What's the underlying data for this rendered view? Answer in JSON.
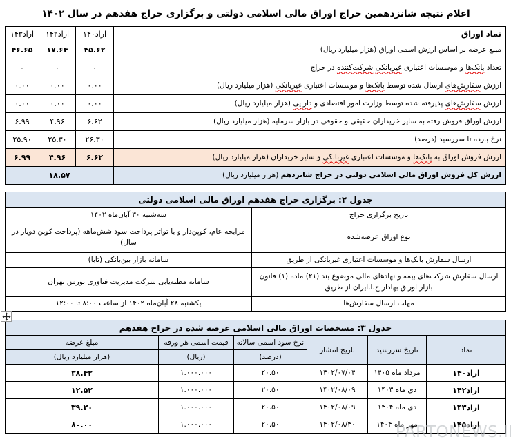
{
  "page": {
    "title": "اعلام نتیجه شانزدهمین حراج اوراق مالی اسلامی دولتی و برگزاری حراج هفدهم در سال ۱۴۰۲"
  },
  "colors": {
    "header_blue": "#dbe5f1",
    "highlight_peach": "#fbe5d6",
    "squiggle_red": "#e00000",
    "watermark_gray": "#b9bdc0"
  },
  "icons": {
    "table-move-handle": "four-way-arrow"
  },
  "watermark": {
    "text": "PARTONEWS.IR"
  },
  "table1": {
    "corner_label": "نماد اوراق",
    "columns": [
      "اراد۱۴۰",
      "اراد۱۴۲",
      "اراد۱۴۳"
    ],
    "rows": [
      {
        "label": [
          {
            "t": "مبلغ عرضه بر اساس ارزش اسمی اوراق (هزار میلیارد ریال)"
          }
        ],
        "values": [
          "۴۵.۶۲",
          "۱۷.۶۴",
          "۴۶.۶۵"
        ],
        "bold": true
      },
      {
        "label": [
          {
            "t": "تعداد "
          },
          {
            "t": "بانک‌ها",
            "sq": true
          },
          {
            "t": " و موسسات اعتباری "
          },
          {
            "t": "غیربانکی",
            "sq": true
          },
          {
            "t": " "
          },
          {
            "t": "شرکت‌کننده",
            "sq": true
          },
          {
            "t": " در حراج"
          }
        ],
        "values": [
          "۰",
          "۰",
          "۰"
        ]
      },
      {
        "label": [
          {
            "t": "ارزش "
          },
          {
            "t": "سفارش‌های",
            "sq": true
          },
          {
            "t": " ارسال شده توسط "
          },
          {
            "t": "بانک‌ها",
            "sq": true
          },
          {
            "t": " و موسسات اعتباری "
          },
          {
            "t": "غیربانکی",
            "sq": true
          },
          {
            "t": " (هزار میلیارد ریال)"
          }
        ],
        "values": [
          "۰.۰۰",
          "۰.۰۰",
          "۰.۰۰"
        ]
      },
      {
        "label": [
          {
            "t": "ارزش "
          },
          {
            "t": "سفارش‌های",
            "sq": true
          },
          {
            "t": " پذیرفته شده توسط وزارت امور اقتصادی و "
          },
          {
            "t": "دارایی",
            "sq": true
          },
          {
            "t": " (هزار میلیارد ریال)"
          }
        ],
        "values": [
          "۰.۰۰",
          "۰.۰۰",
          "۰.۰۰"
        ]
      },
      {
        "label": [
          {
            "t": "ارزش اوراق فروش رفته به سایر خریداران حقیقی و حقوقی در بازار سرمایه (هزار میلیارد ریال)"
          }
        ],
        "values": [
          "۶.۶۲",
          "۴.۹۶",
          "۶.۹۹"
        ]
      },
      {
        "label": [
          {
            "t": "نرخ بازده تا سررسید (درصد)"
          }
        ],
        "values": [
          "۲۶.۳۰",
          "۲۵.۳۰",
          "۲۵.۹۰"
        ]
      },
      {
        "label": [
          {
            "t": "ارزش فروش اوراق به "
          },
          {
            "t": "بانک‌ها",
            "sq": true
          },
          {
            "t": " و موسسات اعتباری "
          },
          {
            "t": "غیربانکی",
            "sq": true
          },
          {
            "t": " و سایر خریداران (هزار میلیارد ریال)"
          }
        ],
        "values": [
          "۶.۶۲",
          "۴.۹۶",
          "۶.۹۹"
        ],
        "bold": true,
        "bg": "peach"
      }
    ],
    "total_row": {
      "label_bold": "ارزش کل فروش اوراق مالی اسلامی دولتی در حراج شانزدهم",
      "label_unit": " (هزار میلیارد ریال)",
      "value": "۱۸.۵۷"
    }
  },
  "table2": {
    "title": "جدول ۲: برگزاری حراج هفدهم اوراق مالی اسلامی دولتی",
    "rows": [
      {
        "label": "تاریخ برگزاری حراج",
        "value": "سه‌شنبه ۳۰ آبان‌ماه ۱۴۰۲"
      },
      {
        "label": "نوع اوراق عرضه‌شده",
        "value": "مرابحه عام، کوپن‌دار و با تواتر پرداخت سود شش‌ماهه (پرداخت کوپن دوبار در سال)"
      },
      {
        "label": "ارسال سفارش بانک‌ها و موسسات اعتباری غیربانکی از طریق",
        "value": "سامانه بازار بین‌بانکی (تابا)"
      },
      {
        "label": "ارسال سفارش شرکت‌های بیمه و نهادهای مالی موضوع بند (۲۱) ماده (۱) قانون بازار اوراق بهادار ج.ا.ایران از طریق",
        "value": "سامانه مظنه‌یابی شرکت مدیریت فناوری بورس تهران"
      },
      {
        "label": "مهلت ارسال سفارش‌ها",
        "value": "یکشنبه ۲۸ آبان‌ماه ۱۴۰۲ از ساعت ۸:۰۰ تا ۱۲:۰۰"
      }
    ]
  },
  "table3": {
    "title": "جدول ۳: مشخصات اوراق مالی اسلامی عرضه شده در حراج هفدهم",
    "headers": {
      "symbol": "نماد",
      "maturity": "تاریخ سررسید",
      "issue": "تاریخ انتشار",
      "coupon": [
        "نرخ سود اسمی سالانه",
        "(درصد)"
      ],
      "face": [
        "قیمت اسمی هر ورقه",
        "(ریال)"
      ],
      "amount": [
        "مبلغ عرضه",
        "(هزار میلیارد ریال)"
      ]
    },
    "rows": [
      {
        "symbol": "اراد۱۴۰",
        "maturity": "مرداد ماه ۱۴۰۵",
        "issue": "۱۴۰۲/۰۷/۰۴",
        "coupon": "۲۰.۵۰",
        "face": "۱.۰۰۰.۰۰۰",
        "amount": "۳۸.۴۲"
      },
      {
        "symbol": "اراد۱۴۲",
        "maturity": "دی ماه ۱۴۰۳",
        "issue": "۱۴۰۲/۰۸/۰۹",
        "coupon": "۲۰.۵۰",
        "face": "۱.۰۰۰.۰۰۰",
        "amount": "۱۲.۵۲"
      },
      {
        "symbol": "اراد۱۴۳",
        "maturity": "دی ماه ۱۴۰۴",
        "issue": "۱۴۰۲/۰۸/۰۹",
        "coupon": "۲۰.۵۰",
        "face": "۱.۰۰۰.۰۰۰",
        "amount": "۳۹.۲۰"
      },
      {
        "symbol": "اراد۱۴۵",
        "maturity": "مهر ماه ۱۴۰۴",
        "issue": "۱۴۰۲/۰۸/۳۰",
        "coupon": "۲۰.۵۰",
        "face": "۱.۰۰۰.۰۰۰",
        "amount": "۸۰.۰۰"
      }
    ]
  }
}
